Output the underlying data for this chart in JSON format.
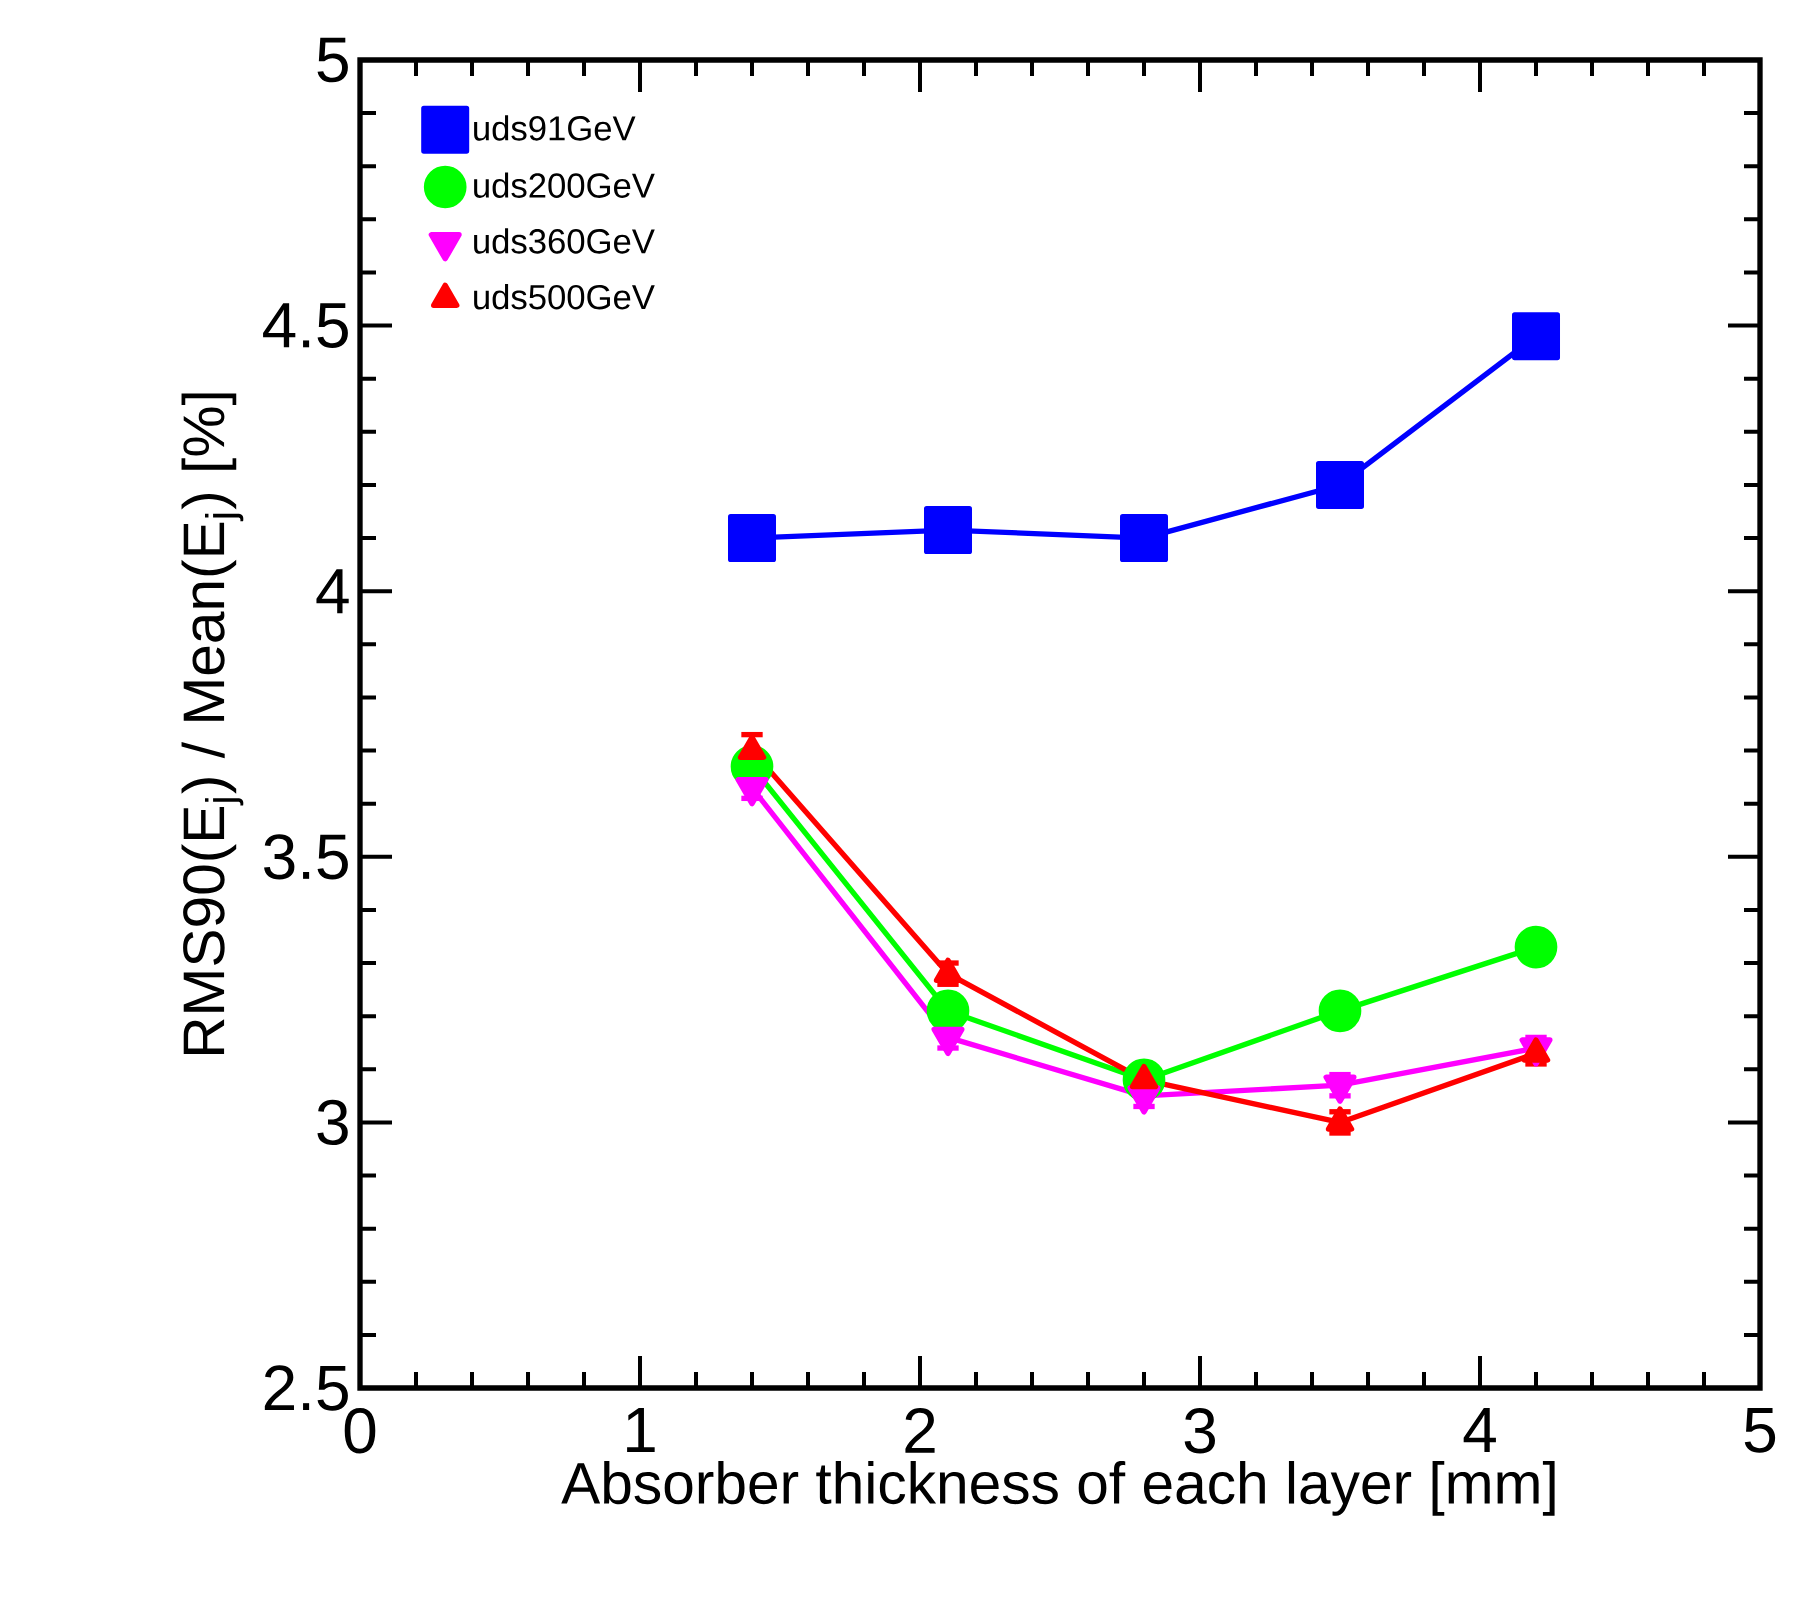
{
  "chart_data": {
    "type": "line",
    "xlabel": "Absorber thickness of each layer  [mm]",
    "ylabel": "RMS90(E$_{j}$) / Mean(E$_{j}$)  [%]",
    "x": [
      1.4,
      2.1,
      2.8,
      3.5,
      4.2
    ],
    "series": [
      {
        "name": "uds91GeV",
        "color": "#0000ff",
        "marker": "square",
        "values": [
          4.1,
          4.115,
          4.1,
          4.2,
          4.48
        ],
        "errors": [
          0.03,
          0.03,
          0.03,
          0.03,
          0.03
        ]
      },
      {
        "name": "uds200GeV",
        "color": "#00ff00",
        "marker": "circle",
        "values": [
          3.67,
          3.21,
          3.08,
          3.21,
          3.33
        ],
        "errors": [
          0.02,
          0.02,
          0.02,
          0.02,
          0.02
        ]
      },
      {
        "name": "uds360GeV",
        "color": "#ff00ff",
        "marker": "triangle-down",
        "values": [
          3.63,
          3.16,
          3.05,
          3.07,
          3.14
        ],
        "errors": [
          0.02,
          0.02,
          0.02,
          0.02,
          0.02
        ]
      },
      {
        "name": "uds500GeV",
        "color": "#ff0000",
        "marker": "triangle",
        "values": [
          3.7,
          3.28,
          3.08,
          3.0,
          3.13
        ],
        "errors": [
          0.03,
          0.02,
          0.02,
          0.02,
          0.02
        ]
      }
    ],
    "xlim": [
      0,
      5
    ],
    "ylim": [
      2.5,
      5
    ],
    "xticks": [
      0,
      1,
      2,
      3,
      4,
      5
    ],
    "yticks": [
      2.5,
      3,
      3.5,
      4,
      4.5,
      5
    ],
    "legend": "top left",
    "grid": false,
    "line_style": "solid"
  }
}
